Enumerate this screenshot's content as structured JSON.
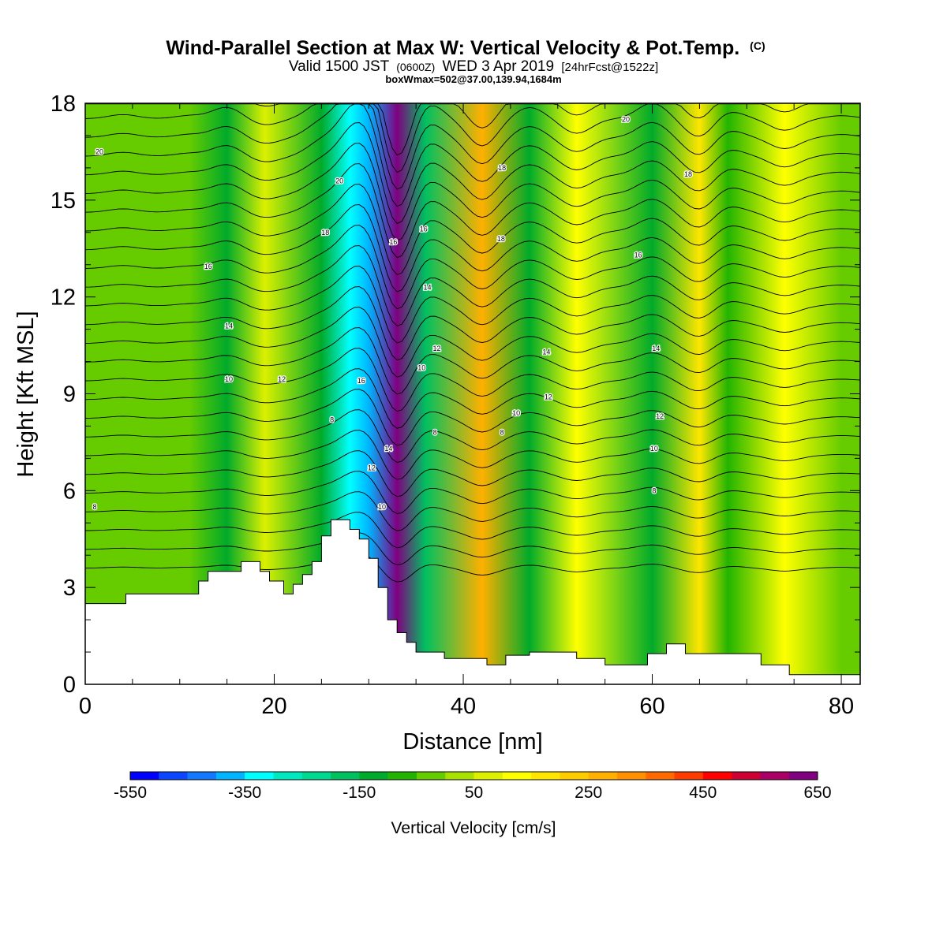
{
  "header": {
    "title": "Wind-Parallel Section at Max W: Vertical Velocity & Pot.Temp.",
    "title_mark": "(C)",
    "subtitle_a": "Valid 1500 JST",
    "subtitle_b": "(0600Z)",
    "subtitle_c": "WED 3 Apr 2019",
    "subtitle_d": "[24hrFcst@1522z]",
    "subtitle2": "boxWmax=502@37.00,139.94,1684m"
  },
  "chart_data": {
    "type": "heatmap",
    "xlabel": "Distance [nm]",
    "ylabel": "Height [Kft MSL]",
    "xlim": [
      0,
      82
    ],
    "ylim": [
      0,
      18
    ],
    "x_ticks": [
      0,
      20,
      40,
      60,
      80
    ],
    "y_ticks": [
      0,
      3,
      6,
      9,
      12,
      15,
      18
    ],
    "grid": false,
    "colorbar": {
      "label": "Vertical Velocity [cm/s]",
      "min": -550,
      "max": 650,
      "step": 50,
      "tick_labels": [
        "-550",
        "-350",
        "-150",
        "50",
        "250",
        "450",
        "650"
      ],
      "tick_values": [
        -550,
        -350,
        -150,
        50,
        250,
        450,
        650
      ],
      "colors": [
        "#0000ff",
        "#0a46ff",
        "#1478ff",
        "#00b4ff",
        "#00ffff",
        "#00e8c0",
        "#00d890",
        "#00c060",
        "#00aa2a",
        "#22b400",
        "#66cc00",
        "#a8e000",
        "#dcf000",
        "#ffff00",
        "#ffe600",
        "#ffcc00",
        "#ffb000",
        "#ff9000",
        "#ff6a00",
        "#ff3c00",
        "#ff0000",
        "#cc0033",
        "#aa0066",
        "#800080"
      ]
    },
    "bands": [
      {
        "x": 4,
        "w": -40
      },
      {
        "x": 11,
        "w": -30
      },
      {
        "x": 15,
        "w": -110
      },
      {
        "x": 19,
        "w": 60
      },
      {
        "x": 25,
        "w": -140
      },
      {
        "x": 28,
        "w": -330
      },
      {
        "x": 30,
        "w": -370
      },
      {
        "x": 33,
        "w": 600
      },
      {
        "x": 36,
        "w": -180
      },
      {
        "x": 42,
        "w": 260
      },
      {
        "x": 47,
        "w": -110
      },
      {
        "x": 52,
        "w": 140
      },
      {
        "x": 60,
        "w": -150
      },
      {
        "x": 65,
        "w": 180
      },
      {
        "x": 68,
        "w": -80
      },
      {
        "x": 74,
        "w": 110
      },
      {
        "x": 80,
        "w": -30
      }
    ],
    "terrain": [
      [
        0,
        2.5
      ],
      [
        4.3,
        2.5
      ],
      [
        4.3,
        2.8
      ],
      [
        12,
        2.8
      ],
      [
        12,
        3.2
      ],
      [
        13,
        3.2
      ],
      [
        13,
        3.5
      ],
      [
        16.5,
        3.5
      ],
      [
        16.5,
        3.8
      ],
      [
        18.5,
        3.8
      ],
      [
        18.5,
        3.5
      ],
      [
        19.5,
        3.5
      ],
      [
        19.5,
        3.2
      ],
      [
        21,
        3.2
      ],
      [
        21,
        2.8
      ],
      [
        22,
        2.8
      ],
      [
        22,
        3.1
      ],
      [
        23,
        3.1
      ],
      [
        23,
        3.4
      ],
      [
        24,
        3.4
      ],
      [
        24,
        3.8
      ],
      [
        25,
        3.8
      ],
      [
        25,
        4.6
      ],
      [
        26,
        4.6
      ],
      [
        26,
        5.1
      ],
      [
        28,
        5.1
      ],
      [
        28,
        4.8
      ],
      [
        29,
        4.8
      ],
      [
        29,
        4.5
      ],
      [
        30,
        4.5
      ],
      [
        30,
        3.9
      ],
      [
        31,
        3.9
      ],
      [
        31,
        3.0
      ],
      [
        32,
        3.0
      ],
      [
        32,
        2.0
      ],
      [
        33,
        2.0
      ],
      [
        33,
        1.6
      ],
      [
        34,
        1.6
      ],
      [
        34,
        1.3
      ],
      [
        35,
        1.3
      ],
      [
        35,
        1.0
      ],
      [
        38,
        1.0
      ],
      [
        38,
        0.8
      ],
      [
        42.5,
        0.8
      ],
      [
        42.5,
        0.6
      ],
      [
        44.5,
        0.6
      ],
      [
        44.5,
        0.9
      ],
      [
        47,
        0.9
      ],
      [
        47,
        1.0
      ],
      [
        52,
        1.0
      ],
      [
        52,
        0.8
      ],
      [
        55,
        0.8
      ],
      [
        55,
        0.6
      ],
      [
        59.5,
        0.6
      ],
      [
        59.5,
        0.95
      ],
      [
        61.5,
        0.95
      ],
      [
        61.5,
        1.25
      ],
      [
        63.5,
        1.25
      ],
      [
        63.5,
        0.95
      ],
      [
        71.5,
        0.95
      ],
      [
        71.5,
        0.6
      ],
      [
        74.5,
        0.6
      ],
      [
        74.5,
        0.3
      ],
      [
        82,
        0.3
      ]
    ],
    "contour_labels": [
      {
        "x": 1.5,
        "y": 16.5,
        "text": "20"
      },
      {
        "x": 1.0,
        "y": 5.5,
        "text": "8"
      },
      {
        "x": 13.0,
        "y": 12.95,
        "text": "16"
      },
      {
        "x": 15.2,
        "y": 11.1,
        "text": "14"
      },
      {
        "x": 15.2,
        "y": 9.45,
        "text": "10"
      },
      {
        "x": 20.8,
        "y": 9.45,
        "text": "12"
      },
      {
        "x": 26.9,
        "y": 15.6,
        "text": "20"
      },
      {
        "x": 25.4,
        "y": 14.0,
        "text": "18"
      },
      {
        "x": 26.1,
        "y": 8.2,
        "text": "8"
      },
      {
        "x": 29.2,
        "y": 9.4,
        "text": "16"
      },
      {
        "x": 32.6,
        "y": 13.7,
        "text": "16"
      },
      {
        "x": 32.1,
        "y": 7.3,
        "text": "14"
      },
      {
        "x": 30.3,
        "y": 6.7,
        "text": "12"
      },
      {
        "x": 31.4,
        "y": 5.5,
        "text": "10"
      },
      {
        "x": 35.8,
        "y": 14.1,
        "text": "16"
      },
      {
        "x": 36.2,
        "y": 12.3,
        "text": "14"
      },
      {
        "x": 37.2,
        "y": 10.4,
        "text": "12"
      },
      {
        "x": 35.6,
        "y": 9.8,
        "text": "10"
      },
      {
        "x": 37.0,
        "y": 7.8,
        "text": "8"
      },
      {
        "x": 44.1,
        "y": 16.0,
        "text": "18"
      },
      {
        "x": 44.0,
        "y": 13.8,
        "text": "18"
      },
      {
        "x": 48.8,
        "y": 10.3,
        "text": "14"
      },
      {
        "x": 49.0,
        "y": 8.9,
        "text": "12"
      },
      {
        "x": 45.6,
        "y": 8.4,
        "text": "10"
      },
      {
        "x": 44.1,
        "y": 7.8,
        "text": "8"
      },
      {
        "x": 57.2,
        "y": 17.5,
        "text": "20"
      },
      {
        "x": 63.8,
        "y": 15.8,
        "text": "18"
      },
      {
        "x": 58.5,
        "y": 13.3,
        "text": "16"
      },
      {
        "x": 60.4,
        "y": 10.4,
        "text": "14"
      },
      {
        "x": 60.8,
        "y": 8.3,
        "text": "12"
      },
      {
        "x": 60.2,
        "y": 7.3,
        "text": "10"
      },
      {
        "x": 60.2,
        "y": 6.0,
        "text": "8"
      }
    ]
  }
}
